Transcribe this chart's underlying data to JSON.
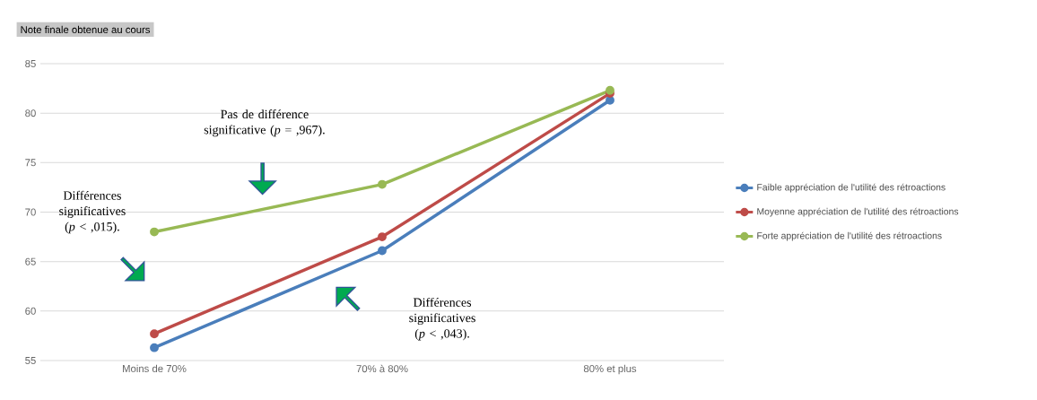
{
  "chart_data": {
    "type": "line",
    "ylabel": "Note finale obtenue au cours",
    "categories": [
      "Moins de 70%",
      "70% à 80%",
      "80% et plus"
    ],
    "series": [
      {
        "name": "Faible appréciation de l'utilité des rétroactions",
        "color": "#4a7ebb",
        "values": [
          56.3,
          66.1,
          81.3
        ]
      },
      {
        "name": "Moyenne appréciation de l'utilité des rétroactions",
        "color": "#be4b48",
        "values": [
          57.7,
          67.5,
          82.0
        ]
      },
      {
        "name": "Forte appréciation de l'utilité des rétroactions",
        "color": "#98b954",
        "values": [
          68.0,
          72.8,
          82.3
        ]
      }
    ],
    "ylim": [
      55,
      85
    ],
    "yticks": [
      55,
      60,
      65,
      70,
      75,
      80,
      85
    ],
    "grid": "y",
    "legend": "right",
    "marker": "circle",
    "line_style": "solid",
    "annotations": [
      "Pas de différence significative (*p* = ,967).",
      "Différences significatives (*p* < ,015).",
      "Différences significatives (*p* < ,043)."
    ]
  }
}
